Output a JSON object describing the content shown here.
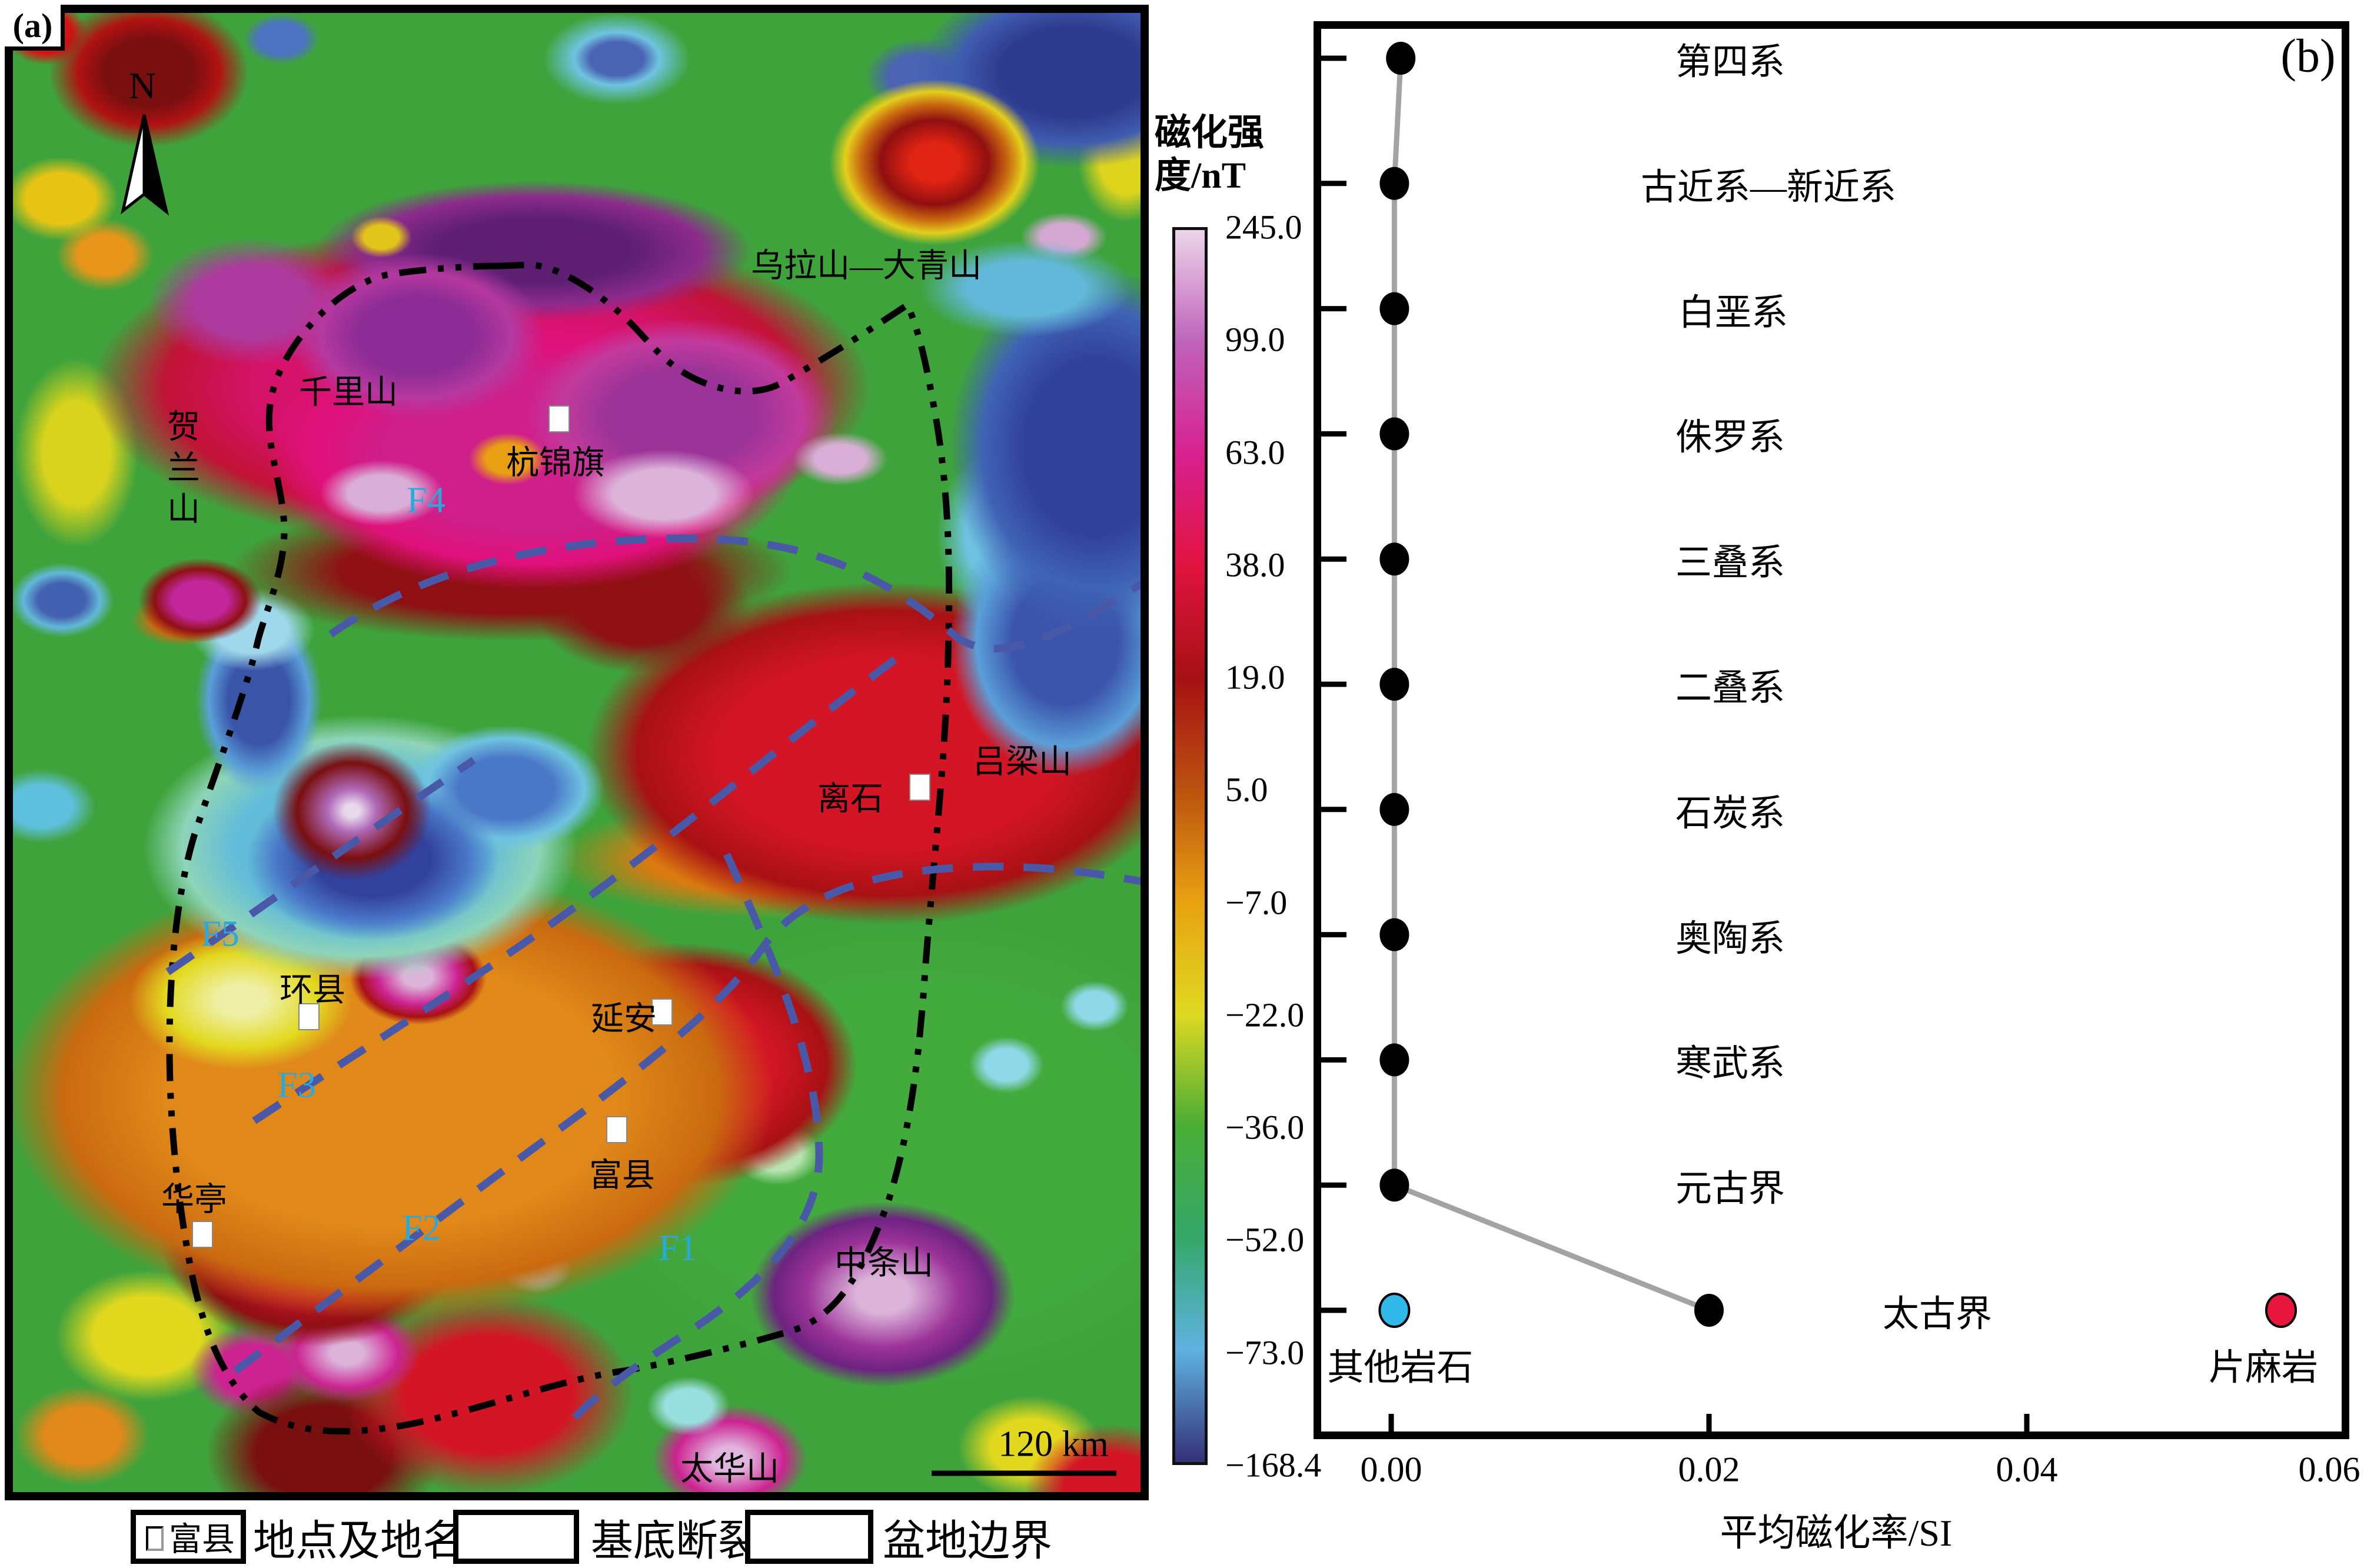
{
  "figure": {
    "panel_a_label": "(a)",
    "panel_b_label": "(b)"
  },
  "map": {
    "north_label": "N",
    "scale_bar_label": "120 km",
    "labels": {
      "wula_daqing": "乌拉山—大青山",
      "qianlishan": "千里山",
      "helanshan": "贺兰山",
      "hangjinqi": "杭锦旗",
      "lishi": "离石",
      "lvliangshan": "吕梁山",
      "huanxian": "环县",
      "yanan": "延安",
      "fuxian": "富县",
      "huating": "华亭",
      "zhongtiaoshan": "中条山",
      "taihuashan": "太华山",
      "f1": "F1",
      "f2": "F2",
      "f3": "F3",
      "f4": "F4",
      "f5": "F5"
    },
    "fault_label_color": "#29a9dc",
    "fault_line_color": "#4a58a8",
    "boundary_color": "#000000",
    "legend": {
      "marker_sample": "富县",
      "item_place": "地点及地名",
      "item_fault": "基底断裂",
      "item_boundary": "盆地边界"
    }
  },
  "colorbar": {
    "title_line1": "磁化强",
    "title_line2": "度/nT",
    "ticks": [
      {
        "value": "245.0",
        "color": "#ecd4e9"
      },
      {
        "value": "99.0",
        "color": "#bf63ba"
      },
      {
        "value": "63.0",
        "color": "#d8218f"
      },
      {
        "value": "38.0",
        "color": "#e11340"
      },
      {
        "value": "19.0",
        "color": "#a61114"
      },
      {
        "value": "5.0",
        "color": "#bb520f"
      },
      {
        "value": "−7.0",
        "color": "#e8a211"
      },
      {
        "value": "−22.0",
        "color": "#ded922"
      },
      {
        "value": "−36.0",
        "color": "#49ad34"
      },
      {
        "value": "−52.0",
        "color": "#35a86b"
      },
      {
        "value": "−73.0",
        "color": "#5fb2e0"
      },
      {
        "value": "−168.4",
        "color": "#343077"
      }
    ]
  },
  "chart_data": {
    "type": "scatter",
    "title": "",
    "xlabel": "平均磁化率/SI",
    "ylabel": "",
    "xlim": [
      0,
      0.06
    ],
    "grid": false,
    "legend_position": "none",
    "xticks": [
      {
        "value": 0.0,
        "label": "0.00"
      },
      {
        "value": 0.02,
        "label": "0.02"
      },
      {
        "value": 0.04,
        "label": "0.04"
      },
      {
        "value": 0.06,
        "label": "0.06"
      }
    ],
    "series": [
      {
        "name": "basin-strata-mean-susceptibility",
        "marker_color": "#000000",
        "line_color": "#a3a3a3",
        "connected": true,
        "points": [
          {
            "label": "第四系",
            "x": 0.0006
          },
          {
            "label": "古近系—新近系",
            "x": 0.0002
          },
          {
            "label": "白垩系",
            "x": 0.0002
          },
          {
            "label": "侏罗系",
            "x": 0.0002
          },
          {
            "label": "三叠系",
            "x": 0.0002
          },
          {
            "label": "二叠系",
            "x": 0.0002
          },
          {
            "label": "石炭系",
            "x": 0.0002
          },
          {
            "label": "奥陶系",
            "x": 0.0002
          },
          {
            "label": "寒武系",
            "x": 0.0002
          },
          {
            "label": "元古界",
            "x": 0.0002
          },
          {
            "label": "太古界",
            "x": 0.02
          }
        ]
      },
      {
        "name": "其他岩石",
        "marker_color": "#2fb8e8",
        "connected": false,
        "points": [
          {
            "label": "其他岩石",
            "x": 0.0002
          }
        ]
      },
      {
        "name": "片麻岩",
        "marker_color": "#e8153c",
        "connected": false,
        "points": [
          {
            "label": "片麻岩",
            "x": 0.056
          }
        ]
      }
    ]
  }
}
